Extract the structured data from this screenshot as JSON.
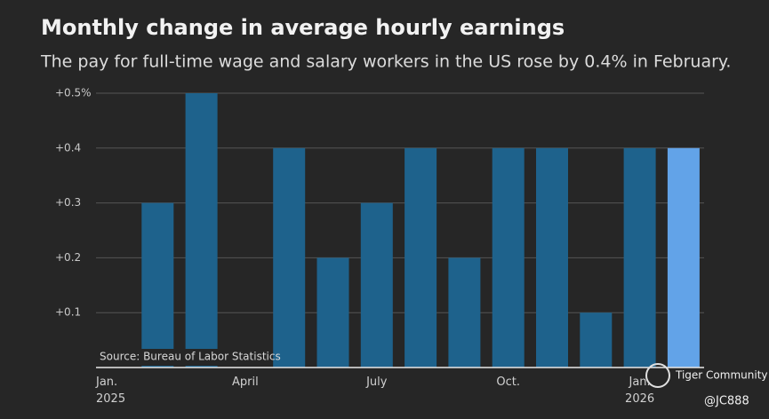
{
  "chart_data": {
    "type": "bar",
    "title": "Monthly change in average hourly earnings",
    "subtitle": "The pay for full-time wage and salary workers in the US rose by 0.4% in February.",
    "categories": [
      "Jan.\n2025",
      null,
      null,
      "April",
      null,
      null,
      "July",
      null,
      null,
      "Oct.",
      null,
      null,
      "Jan.\n2026",
      null
    ],
    "values": [
      0,
      0.3,
      0.5,
      0,
      0.4,
      0.2,
      0.3,
      0.4,
      0.2,
      0.4,
      0.4,
      0.1,
      0.4,
      0.4
    ],
    "colors": [
      "#1e628c",
      "#1e628c",
      "#1e628c",
      "#1e628c",
      "#1e628c",
      "#1e628c",
      "#1e628c",
      "#1e628c",
      "#1e628c",
      "#1e628c",
      "#1e628c",
      "#1e628c",
      "#1e628c",
      "#62a3e8"
    ],
    "ylim": [
      0,
      0.5
    ],
    "yticks": [
      {
        "value": 0.1,
        "label": "+0.1"
      },
      {
        "value": 0.2,
        "label": "+0.2"
      },
      {
        "value": 0.3,
        "label": "+0.3"
      },
      {
        "value": 0.4,
        "label": "+0.4"
      },
      {
        "value": 0.5,
        "label": "+0.5%"
      }
    ],
    "grid": true,
    "source": "Source: Bureau of Labor Statistics",
    "watermark": "Tiger Community",
    "handle": "@JC888"
  }
}
